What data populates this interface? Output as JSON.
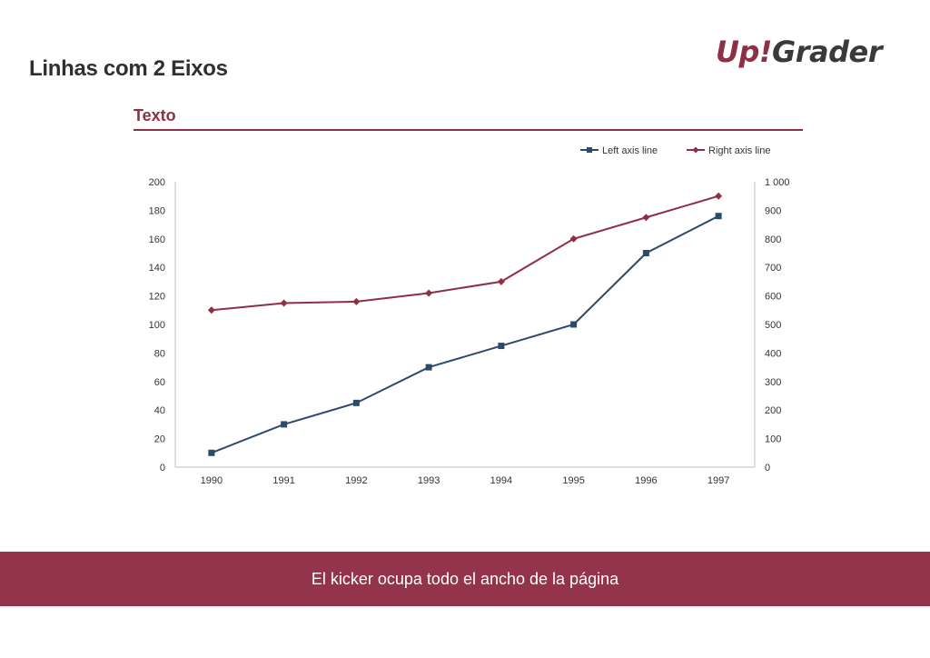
{
  "slide": {
    "title": "Linhas com 2 Eixos",
    "section_title": "Texto",
    "kicker": "El kicker ocupa todo el ancho de la página"
  },
  "logo": {
    "part1": "Up",
    "part2": "!",
    "part3": "Grader"
  },
  "colors": {
    "brand": "#93344b",
    "left_series": "#2e4a6b",
    "right_series": "#8e2f44"
  },
  "chart_data": {
    "type": "line",
    "title": "",
    "x": [
      "1990",
      "1991",
      "1992",
      "1993",
      "1994",
      "1995",
      "1996",
      "1997"
    ],
    "y_left_lim": [
      0,
      200
    ],
    "y_left_ticks": [
      "0",
      "20",
      "40",
      "60",
      "80",
      "100",
      "120",
      "140",
      "160",
      "180",
      "200"
    ],
    "y_right_lim": [
      0,
      1000
    ],
    "y_right_ticks": [
      "0",
      "100",
      "200",
      "300",
      "400",
      "500",
      "600",
      "700",
      "800",
      "900",
      "1 000"
    ],
    "legend_position": "top-right",
    "grid": false,
    "series": [
      {
        "name": "Left axis line",
        "axis": "left",
        "marker": "square",
        "color": "#2e4a6b",
        "values": [
          10,
          30,
          45,
          70,
          85,
          100,
          150,
          176
        ]
      },
      {
        "name": "Right axis line",
        "axis": "right",
        "marker": "diamond",
        "color": "#8e2f44",
        "values": [
          550,
          575,
          580,
          610,
          650,
          800,
          875,
          950
        ]
      }
    ]
  }
}
